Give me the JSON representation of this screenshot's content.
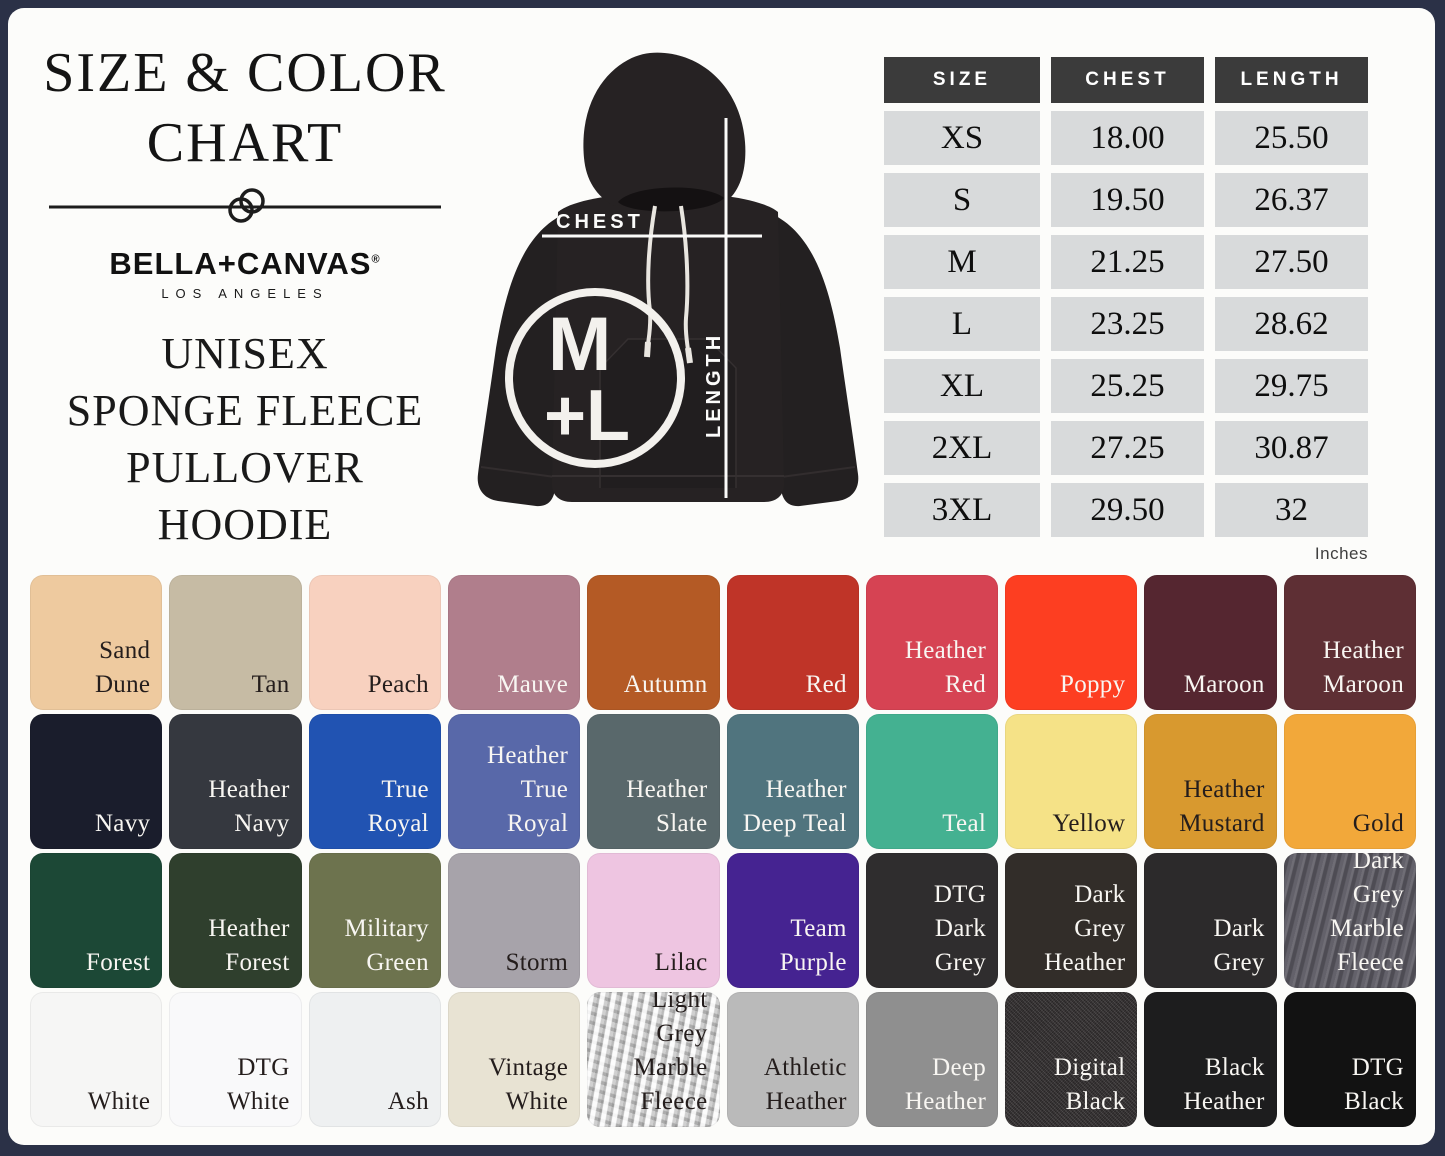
{
  "palette": {
    "frame": "#2b3147",
    "page_background": "#fcfcfa",
    "table_header_bg": "#3b3b3b",
    "table_cell_bg": "#d8dadb",
    "measurement_line": "#fbfbfa"
  },
  "header": {
    "title_line1": "SIZE & COLOR",
    "title_line2": "CHART",
    "brand": "BELLA+CANVAS",
    "brand_reg": "®",
    "brand_city": "LOS ANGELES",
    "product": [
      "UNISEX",
      "SPONGE FLEECE",
      "PULLOVER",
      "HOODIE"
    ]
  },
  "diagram": {
    "chest_label": "CHEST",
    "length_label": "LENGTH",
    "badge_top": "M",
    "badge_bottom": "+L"
  },
  "size_table": {
    "headers": [
      "SIZE",
      "CHEST",
      "LENGTH"
    ],
    "rows": [
      [
        "XS",
        "18.00",
        "25.50"
      ],
      [
        "S",
        "19.50",
        "26.37"
      ],
      [
        "M",
        "21.25",
        "27.50"
      ],
      [
        "L",
        "23.25",
        "28.62"
      ],
      [
        "XL",
        "25.25",
        "29.75"
      ],
      [
        "2XL",
        "27.25",
        "30.87"
      ],
      [
        "3XL",
        "29.50",
        "32"
      ]
    ],
    "unit_note": "Inches"
  },
  "color_swatches": [
    {
      "name": "Sand Dune",
      "hex": "#eeca9f",
      "text": "dark"
    },
    {
      "name": "Tan",
      "hex": "#c6bba4",
      "text": "dark"
    },
    {
      "name": "Peach",
      "hex": "#f8d1bf",
      "text": "dark"
    },
    {
      "name": "Mauve",
      "hex": "#b07e8c",
      "text": "light"
    },
    {
      "name": "Autumn",
      "hex": "#b45a25",
      "text": "light"
    },
    {
      "name": "Red",
      "hex": "#bf3428",
      "text": "light"
    },
    {
      "name": "Heather Red",
      "hex": "#d64353",
      "text": "light"
    },
    {
      "name": "Poppy",
      "hex": "#fd3e21",
      "text": "light"
    },
    {
      "name": "Maroon",
      "hex": "#552630",
      "text": "light"
    },
    {
      "name": "Heather Maroon",
      "hex": "#5e2f34",
      "text": "light"
    },
    {
      "name": "Navy",
      "hex": "#1a1d2c",
      "text": "light"
    },
    {
      "name": "Heather Navy",
      "hex": "#35383f",
      "text": "light"
    },
    {
      "name": "True Royal",
      "hex": "#2153b2",
      "text": "light"
    },
    {
      "name": "Heather True Royal",
      "hex": "#5868a9",
      "text": "light"
    },
    {
      "name": "Heather Slate",
      "hex": "#59686b",
      "text": "light"
    },
    {
      "name": "Heather Deep Teal",
      "hex": "#50747e",
      "text": "light"
    },
    {
      "name": "Teal",
      "hex": "#44b191",
      "text": "light"
    },
    {
      "name": "Yellow",
      "hex": "#f5e287",
      "text": "dark"
    },
    {
      "name": "Heather Mustard",
      "hex": "#d8992f",
      "text": "dark"
    },
    {
      "name": "Gold",
      "hex": "#f2a83a",
      "text": "dark"
    },
    {
      "name": "Forest",
      "hex": "#1c4836",
      "text": "light"
    },
    {
      "name": "Heather Forest",
      "hex": "#2f3f2d",
      "text": "light"
    },
    {
      "name": "Military Green",
      "hex": "#6d734e",
      "text": "light"
    },
    {
      "name": "Storm",
      "hex": "#a7a3aa",
      "text": "dark"
    },
    {
      "name": "Lilac",
      "hex": "#eec5e1",
      "text": "dark"
    },
    {
      "name": "Team Purple",
      "hex": "#452391",
      "text": "light"
    },
    {
      "name": "DTG Dark Grey",
      "hex": "#2f2d2e",
      "text": "light"
    },
    {
      "name": "Dark Grey Heather",
      "hex": "#322d29",
      "text": "light"
    },
    {
      "name": "Dark Grey",
      "hex": "#2c2a2b",
      "text": "light"
    },
    {
      "name": "Dark Grey Marble Fleece",
      "hex": "#5b5962",
      "text": "light",
      "texture": "marble-dark"
    },
    {
      "name": "White",
      "hex": "#f6f6f5",
      "text": "dark"
    },
    {
      "name": "DTG White",
      "hex": "#f9f9fa",
      "text": "dark"
    },
    {
      "name": "Ash",
      "hex": "#eef0f1",
      "text": "dark"
    },
    {
      "name": "Vintage White",
      "hex": "#e8e3d3",
      "text": "dark"
    },
    {
      "name": "Light Grey Marble Fleece",
      "hex": "#cbcbcb",
      "text": "dark",
      "texture": "marble-light"
    },
    {
      "name": "Athletic Heather",
      "hex": "#bababa",
      "text": "dark"
    },
    {
      "name": "Deep Heather",
      "hex": "#8f8f8f",
      "text": "light"
    },
    {
      "name": "Digital Black",
      "hex": "#3a3637",
      "text": "light",
      "texture": "digital"
    },
    {
      "name": "Black Heather",
      "hex": "#1d1d1e",
      "text": "light"
    },
    {
      "name": "DTG Black",
      "hex": "#121212",
      "text": "light"
    }
  ]
}
